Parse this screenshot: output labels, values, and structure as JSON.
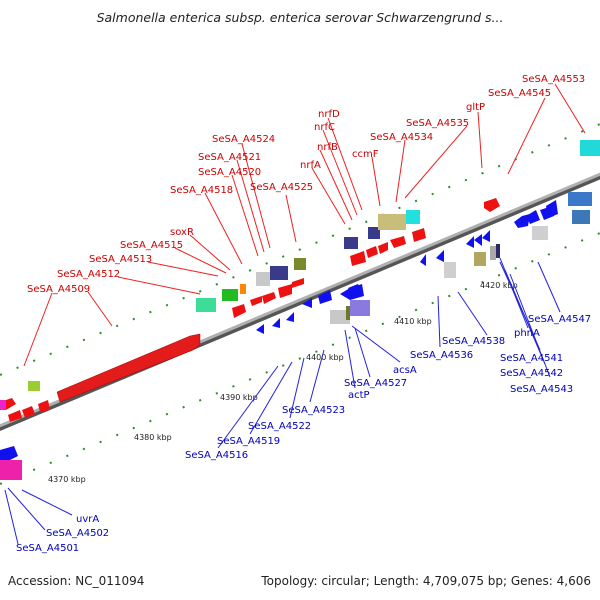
{
  "title": "Salmonella enterica subsp. enterica serovar Schwarzengrund s...",
  "footer": {
    "accession": "Accession: NC_011094",
    "summary": "Topology: circular; Length: 4,709,075 bp; Genes: 4,606"
  },
  "colors": {
    "backbone": "#8c8c8c",
    "tick": "#2e8b2e",
    "forward_label": "#cc0000",
    "reverse_label": "#0000bb",
    "forward_gene": "#ee1111",
    "reverse_gene": "#1111ee"
  },
  "scale_labels": [
    "4370 kbp",
    "4380 kbp",
    "4390 kbp",
    "4400 kbp",
    "4410 kbp",
    "4420 kbp"
  ],
  "forward_labels": [
    "SeSA_A4553",
    "SeSA_A4545",
    "gltP",
    "SeSA_A4535",
    "SeSA_A4534",
    "ccmF",
    "nrfD",
    "nrfC",
    "nrfB",
    "nrfA",
    "SeSA_A4524",
    "SeSA_A4521",
    "SeSA_A4520",
    "SeSA_A4525",
    "SeSA_A4518",
    "soxR",
    "SeSA_A4515",
    "SeSA_A4513",
    "SeSA_A4512",
    "SeSA_A4509"
  ],
  "reverse_labels": [
    "SeSA_A4547",
    "phnA",
    "SeSA_A4541",
    "SeSA_A4542",
    "SeSA_A4543",
    "SeSA_A4538",
    "SeSA_A4536",
    "acsA",
    "actP",
    "SeSA_A4527",
    "SeSA_A4523",
    "SeSA_A4522",
    "SeSA_A4519",
    "SeSA_A4516",
    "uvrA",
    "SeSA_A4502",
    "SeSA_A4501"
  ]
}
